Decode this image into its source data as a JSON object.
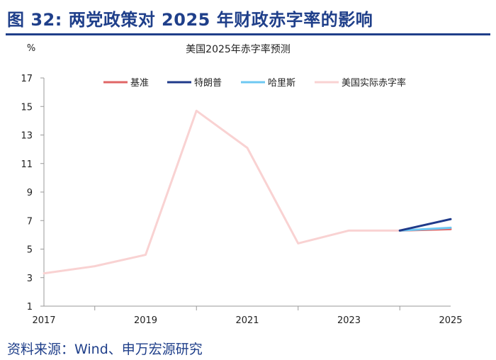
{
  "figure_title": "图 32: 两党政策对 2025 年财政赤字率的影响",
  "source": "资料来源：Wind、申万宏源研究",
  "chart_data": {
    "type": "line",
    "title": "美国2025年赤字率预测",
    "ylabel": "%",
    "xlabel": "",
    "ylim": [
      1,
      17
    ],
    "yticks": [
      1,
      3,
      5,
      7,
      9,
      11,
      13,
      15,
      17
    ],
    "xlim": [
      2017,
      2025
    ],
    "xticks": [
      2017,
      2019,
      2021,
      2023,
      2025
    ],
    "grid": false,
    "legend_position": "top",
    "series": [
      {
        "name": "基准",
        "color": "#e06666",
        "x": [
          2024,
          2025
        ],
        "values": [
          6.3,
          6.4
        ]
      },
      {
        "name": "特朗普",
        "color": "#1f3a8a",
        "x": [
          2024,
          2025
        ],
        "values": [
          6.3,
          7.1
        ]
      },
      {
        "name": "哈里斯",
        "color": "#6ec8f2",
        "x": [
          2024,
          2025
        ],
        "values": [
          6.3,
          6.5
        ]
      },
      {
        "name": "美国实际赤字率",
        "color": "#f9d2d2",
        "x": [
          2017,
          2018,
          2019,
          2020,
          2021,
          2022,
          2023,
          2024
        ],
        "values": [
          3.3,
          3.8,
          4.6,
          14.7,
          12.1,
          5.4,
          6.3,
          6.3
        ]
      }
    ]
  }
}
